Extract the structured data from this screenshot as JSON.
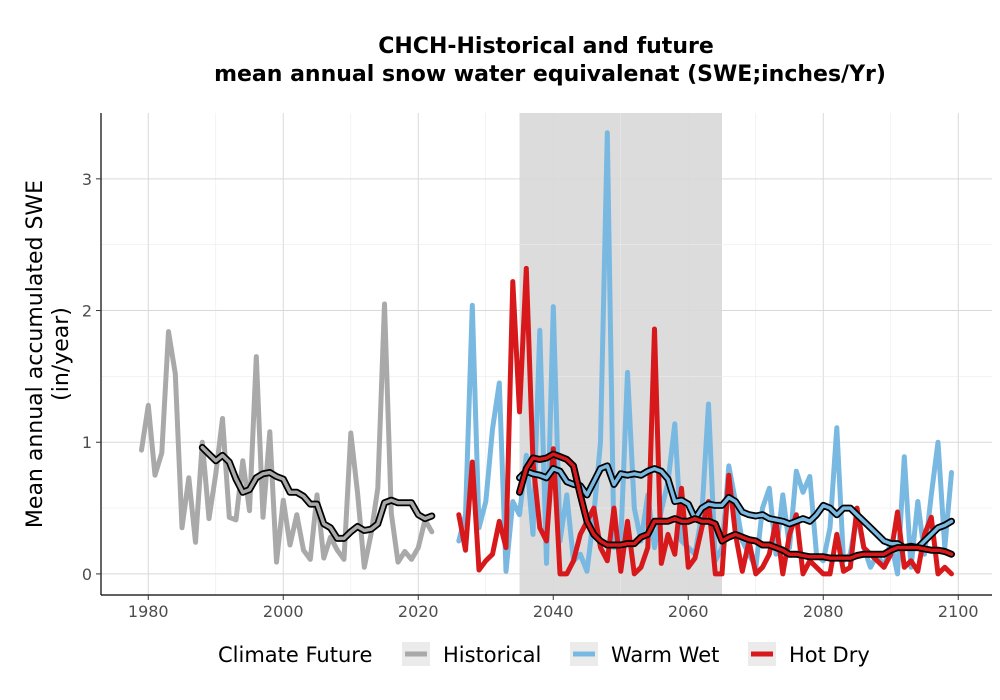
{
  "chart_data": {
    "type": "line",
    "title": [
      "CHCH-Historical and future",
      "mean annual snow water equivalenat (SWE;inches/Yr)"
    ],
    "xlabel": "",
    "ylabel": [
      "Mean annual accumulated SWE",
      "(in/year)"
    ],
    "xlim": [
      1973,
      2105
    ],
    "ylim": [
      -0.16,
      3.5
    ],
    "xticks": [
      1980,
      2000,
      2020,
      2040,
      2060,
      2080,
      2100
    ],
    "yticks": [
      0,
      1,
      2,
      3
    ],
    "grid": true,
    "shaded_period": [
      2035,
      2065
    ],
    "shade_color": "#dcdcdc",
    "legend": {
      "title": "Climate Future",
      "position": "bottom",
      "items": [
        "Historical",
        "Warm Wet",
        "Hot Dry"
      ]
    },
    "series": [
      {
        "name": "Historical",
        "color": "#a9a9a9",
        "x": [
          1979,
          1980,
          1981,
          1982,
          1983,
          1984,
          1985,
          1986,
          1987,
          1988,
          1989,
          1990,
          1991,
          1992,
          1993,
          1994,
          1995,
          1996,
          1997,
          1998,
          1999,
          2000,
          2001,
          2002,
          2003,
          2004,
          2005,
          2006,
          2007,
          2008,
          2009,
          2010,
          2011,
          2012,
          2013,
          2014,
          2015,
          2016,
          2017,
          2018,
          2019,
          2020,
          2021,
          2022
        ],
        "values": [
          0.94,
          1.28,
          0.75,
          0.92,
          1.84,
          1.52,
          0.35,
          0.73,
          0.24,
          1.0,
          0.42,
          0.76,
          1.18,
          0.43,
          0.41,
          0.86,
          0.48,
          1.65,
          0.43,
          1.08,
          0.09,
          0.56,
          0.22,
          0.45,
          0.18,
          0.11,
          0.6,
          0.12,
          0.28,
          0.18,
          0.11,
          1.07,
          0.62,
          0.05,
          0.3,
          0.65,
          2.05,
          0.46,
          0.09,
          0.17,
          0.11,
          0.2,
          0.41,
          0.32
        ]
      },
      {
        "name": "Warm Wet",
        "color": "#79b8e0",
        "x": [
          2026,
          2027,
          2028,
          2029,
          2030,
          2031,
          2032,
          2033,
          2034,
          2035,
          2036,
          2037,
          2038,
          2039,
          2040,
          2041,
          2042,
          2043,
          2044,
          2045,
          2046,
          2047,
          2048,
          2049,
          2050,
          2051,
          2052,
          2053,
          2054,
          2055,
          2056,
          2057,
          2058,
          2059,
          2060,
          2061,
          2062,
          2063,
          2064,
          2065,
          2066,
          2067,
          2068,
          2069,
          2070,
          2071,
          2072,
          2073,
          2074,
          2075,
          2076,
          2077,
          2078,
          2079,
          2080,
          2081,
          2082,
          2083,
          2084,
          2085,
          2086,
          2087,
          2088,
          2089,
          2090,
          2091,
          2092,
          2093,
          2094,
          2095,
          2096,
          2097,
          2098,
          2099
        ],
        "values": [
          0.25,
          0.45,
          2.04,
          0.35,
          0.55,
          1.1,
          1.45,
          0.02,
          0.55,
          0.45,
          0.9,
          0.3,
          1.85,
          0.08,
          2.03,
          0.25,
          0.6,
          0.1,
          0.15,
          0.02,
          0.45,
          1.0,
          3.35,
          0.2,
          0.25,
          1.53,
          0.5,
          0.25,
          0.6,
          0.2,
          0.48,
          0.7,
          1.14,
          0.25,
          0.2,
          0.15,
          0.45,
          1.29,
          0.1,
          0.2,
          0.82,
          0.55,
          0.25,
          0.15,
          0.05,
          0.5,
          0.65,
          0.15,
          0.6,
          0.2,
          0.78,
          0.62,
          0.74,
          0.15,
          0.1,
          0.35,
          1.11,
          0.1,
          0.15,
          0.45,
          0.2,
          0.05,
          0.15,
          0.05,
          0.25,
          0.0,
          0.89,
          0.05,
          0.55,
          0.15,
          0.6,
          1.0,
          0.2,
          0.77
        ]
      },
      {
        "name": "Hot Dry",
        "color": "#d7191c",
        "x": [
          2026,
          2027,
          2028,
          2029,
          2030,
          2031,
          2032,
          2033,
          2034,
          2035,
          2036,
          2037,
          2038,
          2039,
          2040,
          2041,
          2042,
          2043,
          2044,
          2045,
          2046,
          2047,
          2048,
          2049,
          2050,
          2051,
          2052,
          2053,
          2054,
          2055,
          2056,
          2057,
          2058,
          2059,
          2060,
          2061,
          2062,
          2063,
          2064,
          2065,
          2066,
          2067,
          2068,
          2069,
          2070,
          2071,
          2072,
          2073,
          2074,
          2075,
          2076,
          2077,
          2078,
          2079,
          2080,
          2081,
          2082,
          2083,
          2084,
          2085,
          2086,
          2087,
          2088,
          2089,
          2090,
          2091,
          2092,
          2093,
          2094,
          2095,
          2096,
          2097,
          2098,
          2099
        ],
        "values": [
          0.45,
          0.18,
          0.85,
          0.03,
          0.1,
          0.15,
          0.4,
          0.2,
          2.22,
          1.23,
          2.32,
          0.85,
          0.35,
          0.25,
          0.95,
          0.0,
          0.0,
          0.1,
          0.3,
          0.4,
          0.5,
          0.2,
          0.1,
          0.5,
          0.02,
          0.4,
          0.0,
          0.05,
          0.2,
          1.86,
          0.08,
          0.3,
          0.15,
          0.65,
          0.05,
          0.12,
          0.35,
          0.55,
          0.0,
          0.0,
          0.75,
          0.3,
          0.02,
          0.25,
          0.0,
          0.05,
          0.15,
          0.4,
          0.0,
          0.3,
          0.45,
          0.0,
          0.1,
          0.05,
          0.0,
          0.0,
          0.3,
          0.02,
          0.05,
          0.5,
          0.2,
          0.15,
          0.1,
          0.05,
          0.15,
          0.47,
          0.05,
          0.1,
          0.02,
          0.3,
          0.43,
          0.0,
          0.05,
          0.0
        ]
      },
      {
        "name": "",
        "color": "#a9a9a9",
        "moving_average": true,
        "x": [
          1988,
          1989,
          1990,
          1991,
          1992,
          1993,
          1994,
          1995,
          1996,
          1997,
          1998,
          1999,
          2000,
          2001,
          2002,
          2003,
          2004,
          2005,
          2006,
          2007,
          2008,
          2009,
          2010,
          2011,
          2012,
          2013,
          2014,
          2015,
          2016,
          2017,
          2018,
          2019,
          2020,
          2021,
          2022
        ],
        "values": [
          0.96,
          0.91,
          0.86,
          0.9,
          0.85,
          0.72,
          0.62,
          0.64,
          0.73,
          0.76,
          0.77,
          0.74,
          0.72,
          0.62,
          0.62,
          0.59,
          0.53,
          0.53,
          0.38,
          0.35,
          0.27,
          0.27,
          0.32,
          0.36,
          0.33,
          0.34,
          0.38,
          0.54,
          0.56,
          0.54,
          0.54,
          0.54,
          0.45,
          0.42,
          0.44
        ]
      },
      {
        "name": "",
        "color": "#79b8e0",
        "moving_average": true,
        "x": [
          2035,
          2036,
          2037,
          2038,
          2039,
          2040,
          2041,
          2042,
          2043,
          2044,
          2045,
          2046,
          2047,
          2048,
          2049,
          2050,
          2051,
          2052,
          2053,
          2054,
          2055,
          2056,
          2057,
          2058,
          2059,
          2060,
          2061,
          2062,
          2063,
          2064,
          2065,
          2066,
          2067,
          2068,
          2069,
          2070,
          2071,
          2072,
          2073,
          2074,
          2075,
          2076,
          2077,
          2078,
          2079,
          2080,
          2081,
          2082,
          2083,
          2084,
          2085,
          2086,
          2087,
          2088,
          2089,
          2090,
          2091,
          2092,
          2093,
          2094,
          2095,
          2096,
          2097,
          2098,
          2099
        ],
        "values": [
          0.73,
          0.78,
          0.76,
          0.75,
          0.73,
          0.8,
          0.78,
          0.7,
          0.68,
          0.67,
          0.6,
          0.7,
          0.8,
          0.82,
          0.68,
          0.76,
          0.75,
          0.76,
          0.75,
          0.78,
          0.8,
          0.78,
          0.72,
          0.55,
          0.56,
          0.53,
          0.42,
          0.5,
          0.53,
          0.52,
          0.52,
          0.58,
          0.55,
          0.47,
          0.45,
          0.44,
          0.45,
          0.42,
          0.41,
          0.4,
          0.38,
          0.4,
          0.42,
          0.4,
          0.45,
          0.52,
          0.5,
          0.45,
          0.5,
          0.5,
          0.45,
          0.4,
          0.35,
          0.3,
          0.25,
          0.23,
          0.23,
          0.2,
          0.21,
          0.2,
          0.25,
          0.3,
          0.35,
          0.37,
          0.4
        ]
      },
      {
        "name": "",
        "color": "#d7191c",
        "moving_average": true,
        "x": [
          2035,
          2036,
          2037,
          2038,
          2039,
          2040,
          2041,
          2042,
          2043,
          2044,
          2045,
          2046,
          2047,
          2048,
          2049,
          2050,
          2051,
          2052,
          2053,
          2054,
          2055,
          2056,
          2057,
          2058,
          2059,
          2060,
          2061,
          2062,
          2063,
          2064,
          2065,
          2066,
          2067,
          2068,
          2069,
          2070,
          2071,
          2072,
          2073,
          2074,
          2075,
          2076,
          2077,
          2078,
          2079,
          2080,
          2081,
          2082,
          2083,
          2084,
          2085,
          2086,
          2087,
          2088,
          2089,
          2090,
          2091,
          2092,
          2093,
          2094,
          2095,
          2096,
          2097,
          2098,
          2099
        ],
        "values": [
          0.62,
          0.8,
          0.88,
          0.87,
          0.88,
          0.91,
          0.89,
          0.87,
          0.82,
          0.6,
          0.4,
          0.3,
          0.25,
          0.22,
          0.22,
          0.22,
          0.23,
          0.23,
          0.28,
          0.3,
          0.4,
          0.4,
          0.4,
          0.42,
          0.4,
          0.4,
          0.42,
          0.4,
          0.4,
          0.38,
          0.25,
          0.28,
          0.3,
          0.28,
          0.26,
          0.25,
          0.22,
          0.22,
          0.2,
          0.18,
          0.15,
          0.15,
          0.14,
          0.13,
          0.13,
          0.13,
          0.12,
          0.12,
          0.12,
          0.12,
          0.14,
          0.15,
          0.15,
          0.15,
          0.15,
          0.18,
          0.2,
          0.2,
          0.2,
          0.2,
          0.19,
          0.18,
          0.18,
          0.17,
          0.15
        ]
      }
    ]
  }
}
